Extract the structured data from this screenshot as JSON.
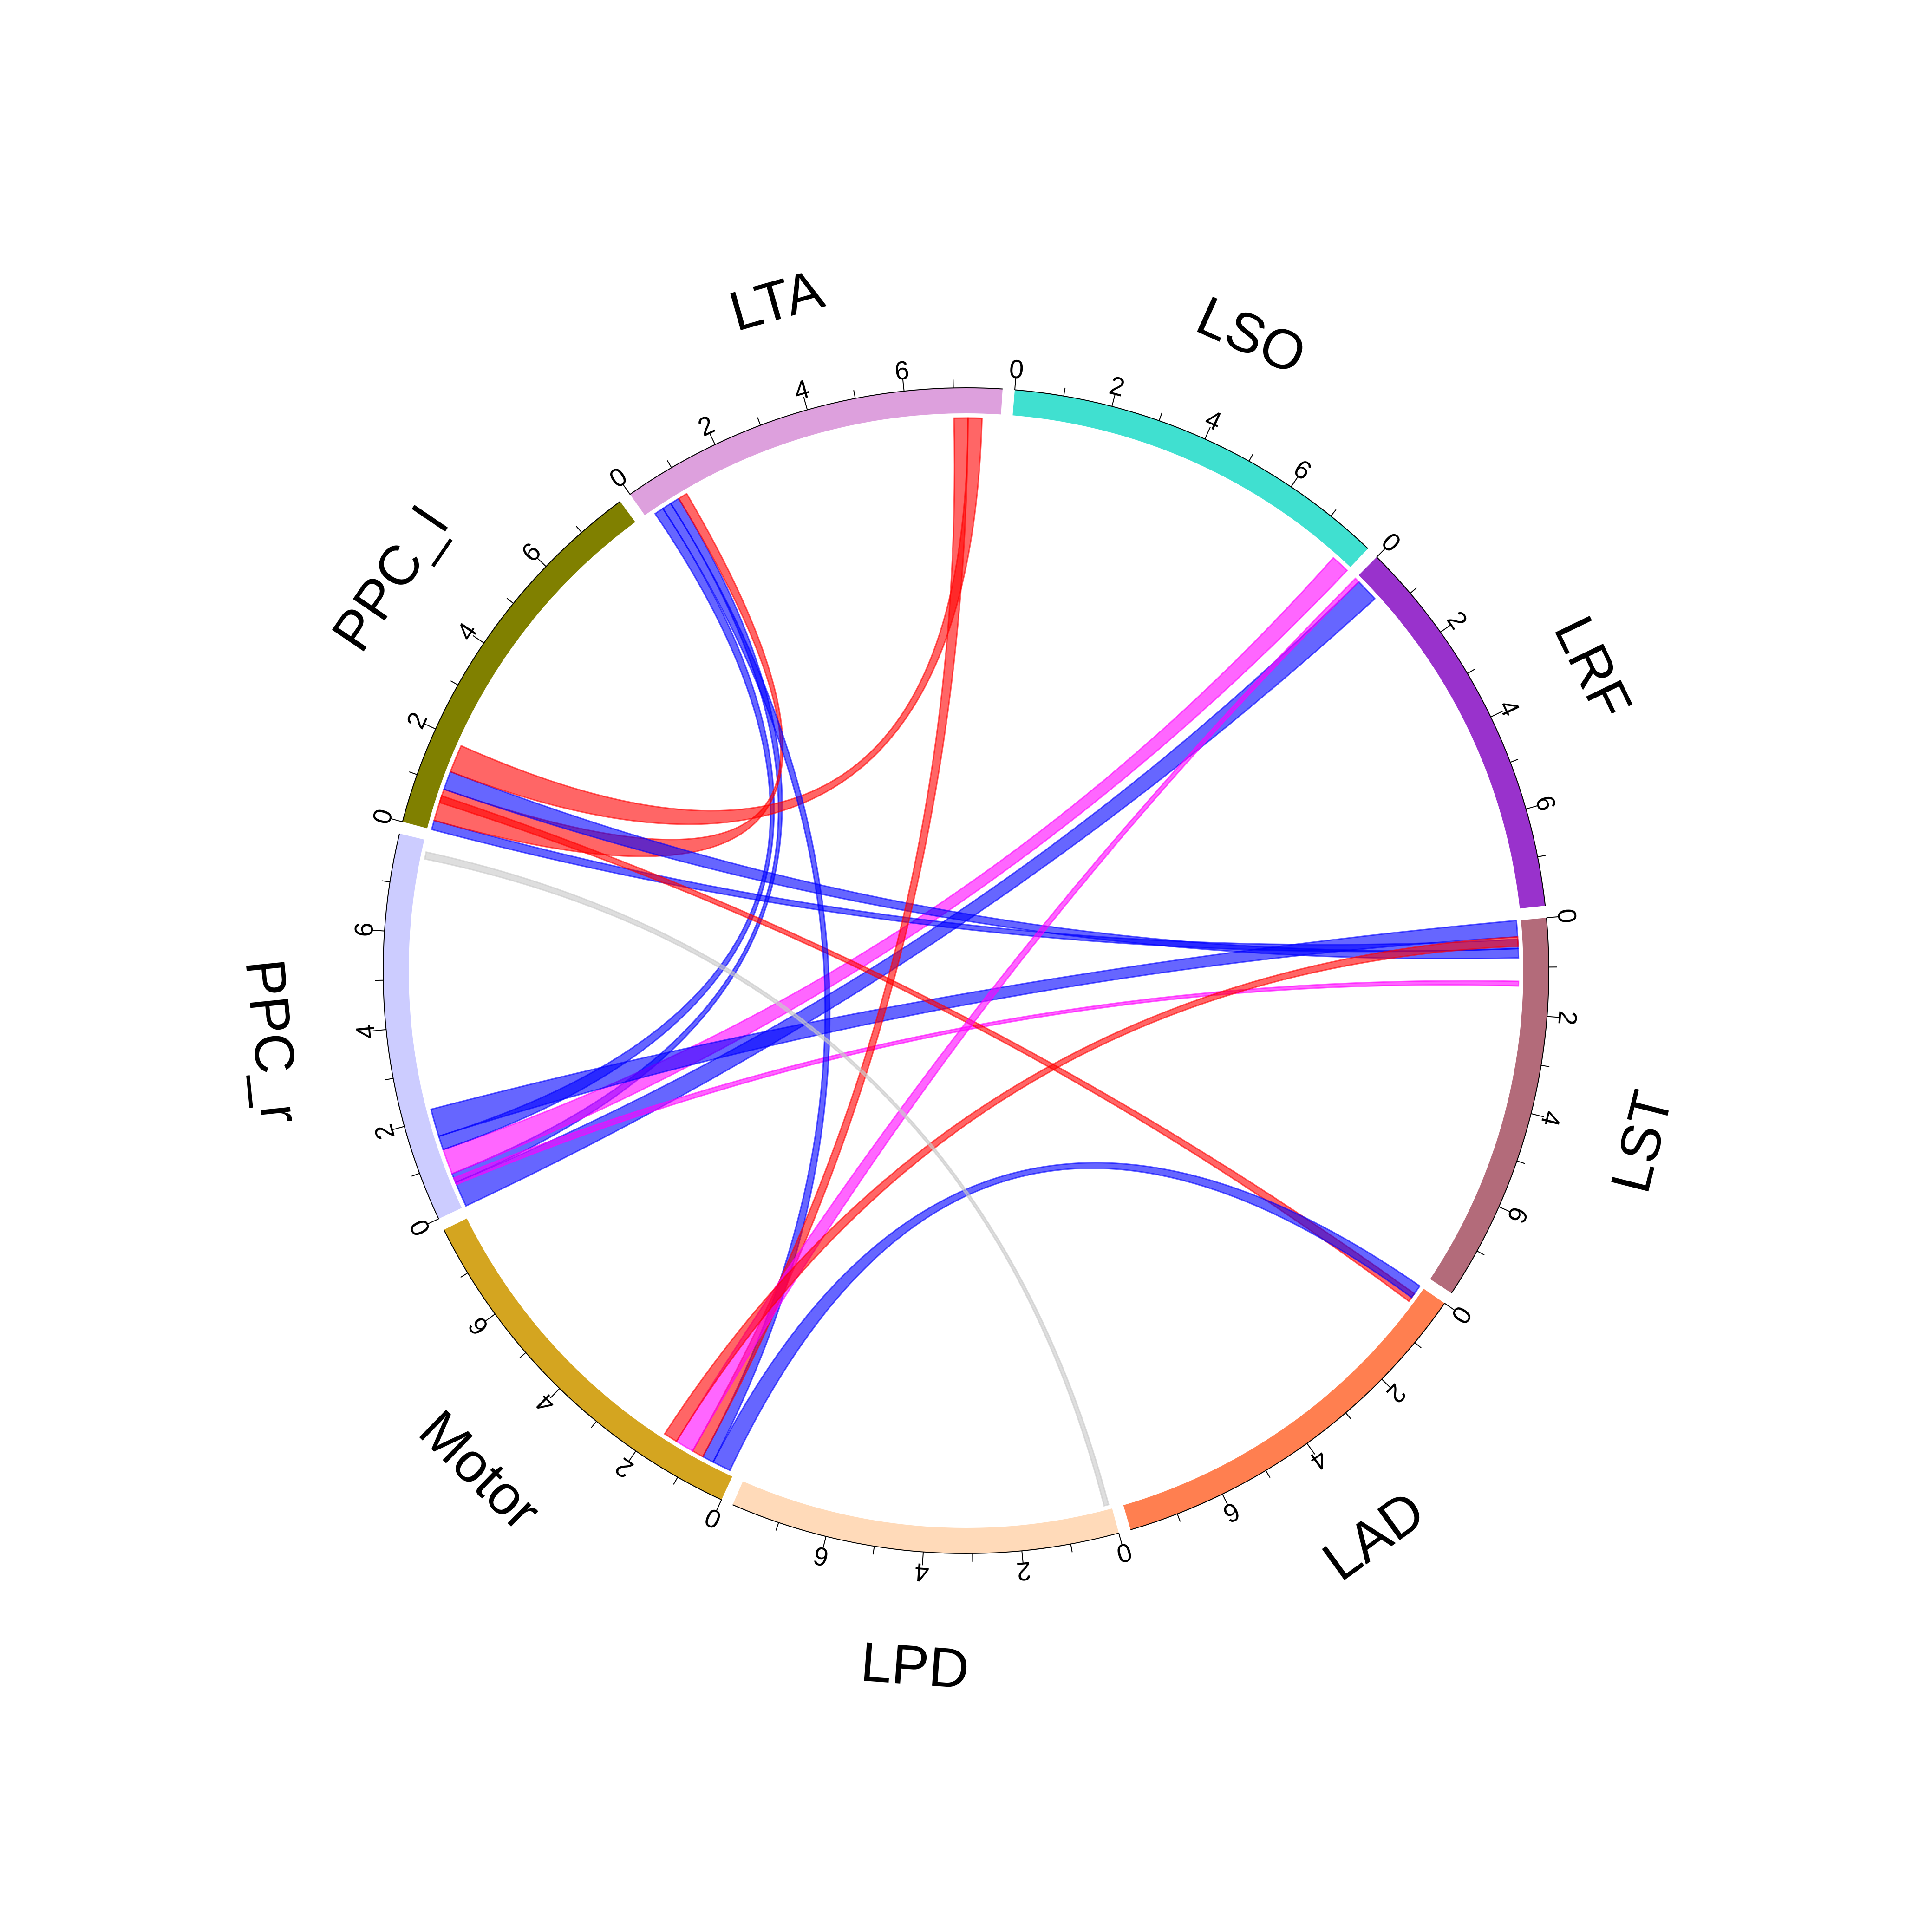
{
  "chart_data": {
    "type": "chord",
    "title": "",
    "sector_max": 8,
    "tick_values": [
      0,
      2,
      4,
      6
    ],
    "sectors": [
      {
        "name": "PPC_r",
        "color": "#CCCCFF"
      },
      {
        "name": "PPC_l",
        "color": "#808000"
      },
      {
        "name": "LTA",
        "color": "#DDA0DD"
      },
      {
        "name": "LSO",
        "color": "#40E0D0"
      },
      {
        "name": "LRF",
        "color": "#9932CC"
      },
      {
        "name": "LST",
        "color": "#B36B7A"
      },
      {
        "name": "LAD",
        "color": "#FF7F50"
      },
      {
        "name": "LPD",
        "color": "#FFDAB9"
      },
      {
        "name": "Motor",
        "color": "#D4A520"
      }
    ],
    "link_colors": {
      "blue": "#0000FF",
      "red": "#FF0000",
      "magenta": "#FF00FF",
      "gray": "#C8C8C8"
    },
    "links": [
      {
        "from": "PPC_r",
        "from_range": [
          0.0,
          0.55
        ],
        "to": "LRF",
        "to_range": [
          0.1,
          0.6
        ],
        "color": "blue"
      },
      {
        "from": "PPC_r",
        "from_range": [
          0.55,
          0.75
        ],
        "to": "LTA",
        "to_range": [
          0.6,
          0.8
        ],
        "color": "blue"
      },
      {
        "from": "PPC_r",
        "from_range": [
          0.75,
          1.3
        ],
        "to": "LSO",
        "to_range": [
          7.6,
          8.0
        ],
        "color": "magenta"
      },
      {
        "from": "PPC_r",
        "from_range": [
          1.3,
          1.6
        ],
        "to": "LTA",
        "to_range": [
          0.2,
          0.4
        ],
        "color": "blue"
      },
      {
        "from": "PPC_r",
        "from_range": [
          0.5,
          0.65
        ],
        "to": "LST",
        "to_range": [
          1.3,
          1.4
        ],
        "color": "magenta"
      },
      {
        "from": "PPC_r",
        "from_range": [
          1.6,
          2.2
        ],
        "to": "LST",
        "to_range": [
          0.0,
          0.35
        ],
        "color": "blue"
      },
      {
        "from": "PPC_l",
        "from_range": [
          0.0,
          0.2
        ],
        "to": "LST",
        "to_range": [
          0.4,
          0.6
        ],
        "color": "blue"
      },
      {
        "from": "PPC_l",
        "from_range": [
          0.2,
          0.9
        ],
        "to": "LTA",
        "to_range": [
          0.8,
          1.0
        ],
        "color": "red"
      },
      {
        "from": "PPC_l",
        "from_range": [
          0.6,
          0.75
        ],
        "to": "LAD",
        "to_range": [
          0.2,
          0.4
        ],
        "color": "red"
      },
      {
        "from": "PPC_l",
        "from_range": [
          0.9,
          1.3
        ],
        "to": "LST",
        "to_range": [
          0.6,
          0.8
        ],
        "color": "blue"
      },
      {
        "from": "PPC_l",
        "from_range": [
          1.3,
          1.9
        ],
        "to": "LTA",
        "to_range": [
          7.3,
          7.6
        ],
        "color": "red"
      },
      {
        "from": "Motor",
        "from_range": [
          0.1,
          0.5
        ],
        "to": "LAD",
        "to_range": [
          0.0,
          0.3
        ],
        "color": "blue"
      },
      {
        "from": "Motor",
        "from_range": [
          0.5,
          0.75
        ],
        "to": "LTA",
        "to_range": [
          0.4,
          0.6
        ],
        "color": "blue"
      },
      {
        "from": "Motor",
        "from_range": [
          0.75,
          1.0
        ],
        "to": "LTA",
        "to_range": [
          7.0,
          7.3
        ],
        "color": "red"
      },
      {
        "from": "Motor",
        "from_range": [
          1.0,
          1.4
        ],
        "to": "LRF",
        "to_range": [
          0.0,
          0.1
        ],
        "color": "magenta"
      },
      {
        "from": "Motor",
        "from_range": [
          1.4,
          1.7
        ],
        "to": "LST",
        "to_range": [
          0.35,
          0.55
        ],
        "color": "red"
      },
      {
        "from": "LPD",
        "from_range": [
          0.05,
          0.15
        ],
        "to": "PPC_r",
        "to_range": [
          7.6,
          7.75
        ],
        "color": "gray"
      }
    ]
  }
}
